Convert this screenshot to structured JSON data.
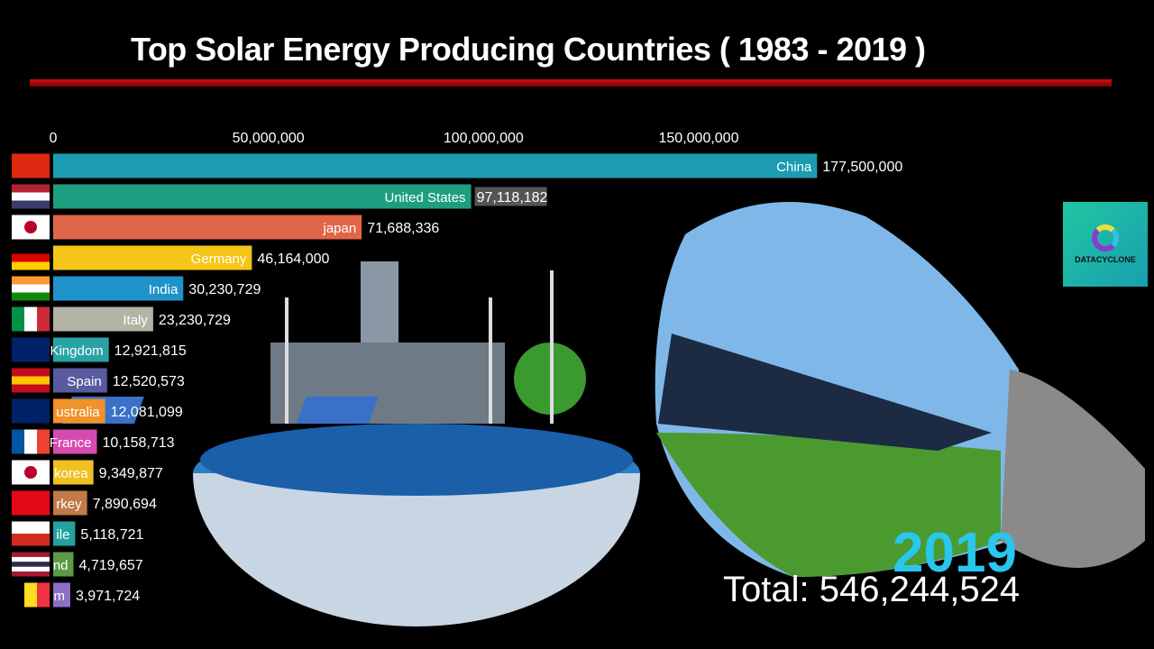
{
  "title": "Top Solar Energy Producing Countries ( 1983 - 2019 )",
  "year": "2019",
  "total": "Total: 546,244,524",
  "logo": {
    "text": "DATACYCLONE"
  },
  "chart_data": {
    "type": "bar",
    "orientation": "horizontal",
    "title": "Top Solar Energy Producing Countries ( 1983 - 2019 )",
    "xticks": [
      0,
      50000000,
      100000000,
      150000000
    ],
    "xtick_labels": [
      "0",
      "50,000,000",
      "100,000,000",
      "150,000,000"
    ],
    "xlim": [
      0,
      150000000
    ],
    "categories": [
      "China",
      "United States",
      "japan",
      "Germany",
      "India",
      "Italy",
      "Kingdom",
      "Spain",
      "ustralia",
      "France",
      "korea",
      "rkey",
      "ile",
      "nd",
      "m"
    ],
    "values": [
      177500000,
      97118182,
      71688336,
      46164000,
      30230729,
      23230729,
      12921815,
      12520573,
      12081099,
      10158713,
      9349877,
      7890694,
      5118721,
      4719657,
      3971724
    ],
    "value_labels": [
      "177,500,000",
      "97,118,182",
      "71,688,336",
      "46,164,000",
      "30,230,729",
      "23,230,729",
      "12,921,815",
      "12,520,573",
      "12,081,099",
      "10,158,713",
      "9,349,877",
      "7,890,694",
      "5,118,721",
      "4,719,657",
      "3,971,724"
    ],
    "colors": [
      "#1b9cb2",
      "#1e9e80",
      "#e0664a",
      "#f5c518",
      "#1f93c9",
      "#b3b3a6",
      "#2aa3a8",
      "#5a5aa0",
      "#f0922a",
      "#d64bb0",
      "#f0c020",
      "#c27a48",
      "#25a0a0",
      "#5b9b45",
      "#8c70c8"
    ],
    "flags": [
      "china",
      "usa",
      "japan",
      "germany",
      "india",
      "italy",
      "uk",
      "spain",
      "australia",
      "france",
      "south-korea",
      "turkey",
      "chile",
      "thailand",
      "belgium"
    ]
  }
}
